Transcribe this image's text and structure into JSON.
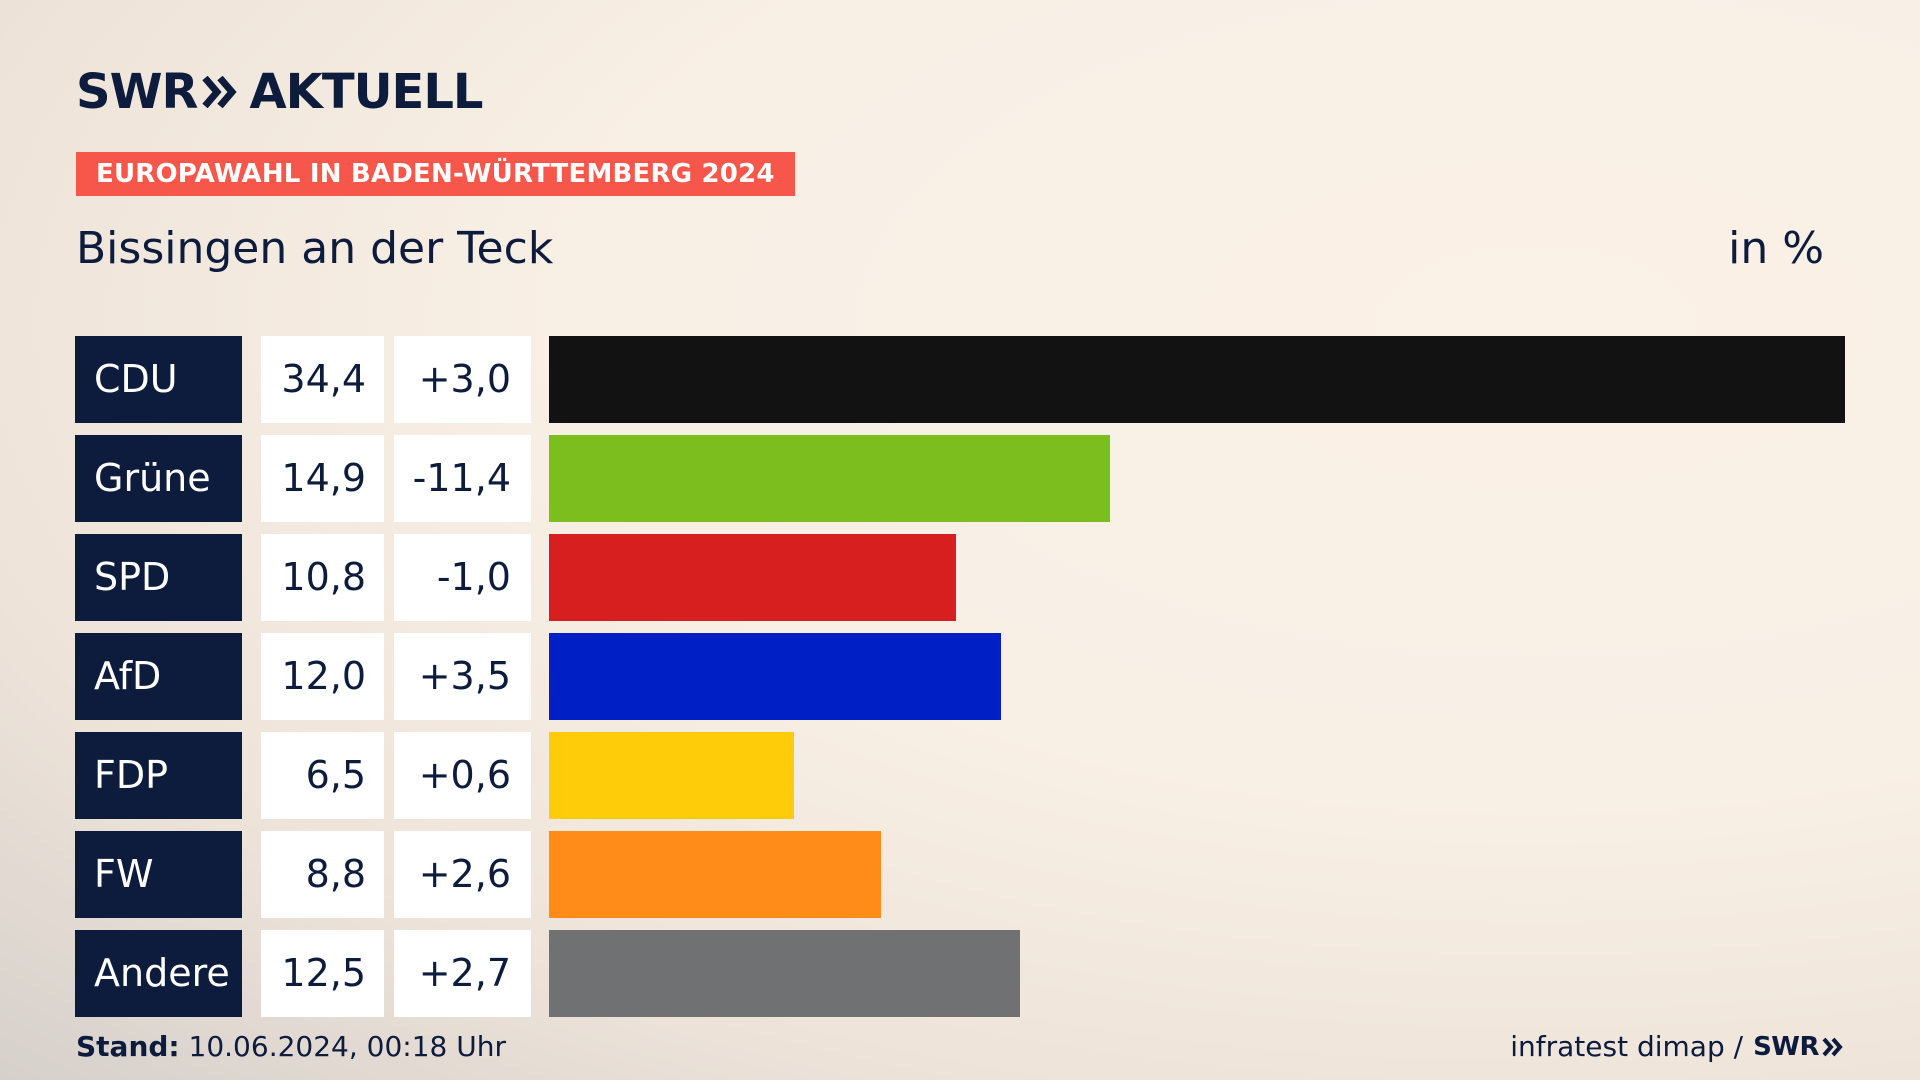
{
  "header": {
    "logo_left": "SWR",
    "logo_right": "AKTUELL",
    "election_tag": "EUROPAWAHL IN BADEN-WÜRTTEMBERG 2024",
    "place": "Bissingen an der Teck",
    "unit": "in %"
  },
  "footer": {
    "stand_label": "Stand:",
    "stand_value": "10.06.2024, 00:18 Uhr",
    "source": "infratest dimap /",
    "source_logo": "SWR"
  },
  "colors": {
    "brand_navy": "#0d1b3d",
    "tag_red": "#f7574a"
  },
  "chart_data": {
    "type": "bar",
    "orientation": "horizontal",
    "title": "Bissingen an der Teck",
    "unit": "in %",
    "xlim": [
      0,
      34.4
    ],
    "categories": [
      "CDU",
      "Grüne",
      "SPD",
      "AfD",
      "FDP",
      "FW",
      "Andere"
    ],
    "values": [
      34.4,
      14.9,
      10.8,
      12.0,
      6.5,
      8.8,
      12.5
    ],
    "value_labels": [
      "34,4",
      "14,9",
      "10,8",
      "12,0",
      "6,5",
      "8,8",
      "12,5"
    ],
    "diff_labels": [
      "+3,0",
      "-11,4",
      "-1,0",
      "+3,5",
      "+0,6",
      "+2,6",
      "+2,7"
    ],
    "diffs": [
      3.0,
      -11.4,
      -1.0,
      3.5,
      0.6,
      2.6,
      2.7
    ],
    "colors": [
      "#121212",
      "#7cbe1e",
      "#d71f1f",
      "#0020c6",
      "#ffcc0a",
      "#ff8c18",
      "#707173"
    ]
  }
}
